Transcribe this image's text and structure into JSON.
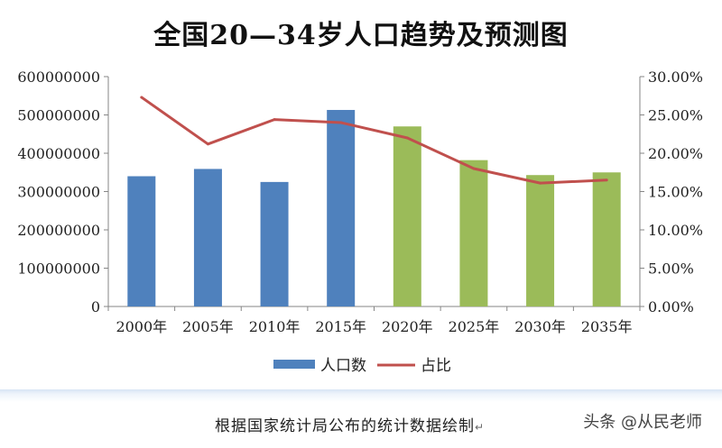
{
  "chart_data": {
    "type": "bar",
    "title": "全国20—34岁人口趋势及预测图",
    "categories": [
      "2000年",
      "2005年",
      "2010年",
      "2015年",
      "2020年",
      "2025年",
      "2030年",
      "2035年"
    ],
    "series": [
      {
        "name": "人口数",
        "type": "bar",
        "axis": "left",
        "values": [
          340000000,
          359000000,
          325000000,
          513000000,
          470000000,
          382000000,
          343000000,
          350000000
        ],
        "colors": [
          "#4f81bd",
          "#4f81bd",
          "#4f81bd",
          "#4f81bd",
          "#9bbb59",
          "#9bbb59",
          "#9bbb59",
          "#9bbb59"
        ]
      },
      {
        "name": "占比",
        "type": "line",
        "axis": "right",
        "values": [
          0.273,
          0.212,
          0.244,
          0.24,
          0.22,
          0.18,
          0.161,
          0.165
        ],
        "color": "#c0504d"
      }
    ],
    "y_left": {
      "ylim": [
        0,
        600000000
      ],
      "ticks": [
        0,
        100000000,
        200000000,
        300000000,
        400000000,
        500000000,
        600000000
      ],
      "tick_labels": [
        "0",
        "100000000",
        "200000000",
        "300000000",
        "400000000",
        "500000000",
        "600000000"
      ]
    },
    "y_right": {
      "ylim": [
        0,
        0.3
      ],
      "ticks": [
        0,
        0.05,
        0.1,
        0.15,
        0.2,
        0.25,
        0.3
      ],
      "tick_labels": [
        "0.00%",
        "5.00%",
        "10.00%",
        "15.00%",
        "20.00%",
        "25.00%",
        "30.00%"
      ]
    },
    "grid": false,
    "legend": {
      "position": "bottom",
      "entries": [
        "人口数",
        "占比"
      ]
    }
  },
  "caption": "根据国家统计局公布的统计数据绘制",
  "caption_mark": "↵",
  "watermark": "头条 @从民老师"
}
